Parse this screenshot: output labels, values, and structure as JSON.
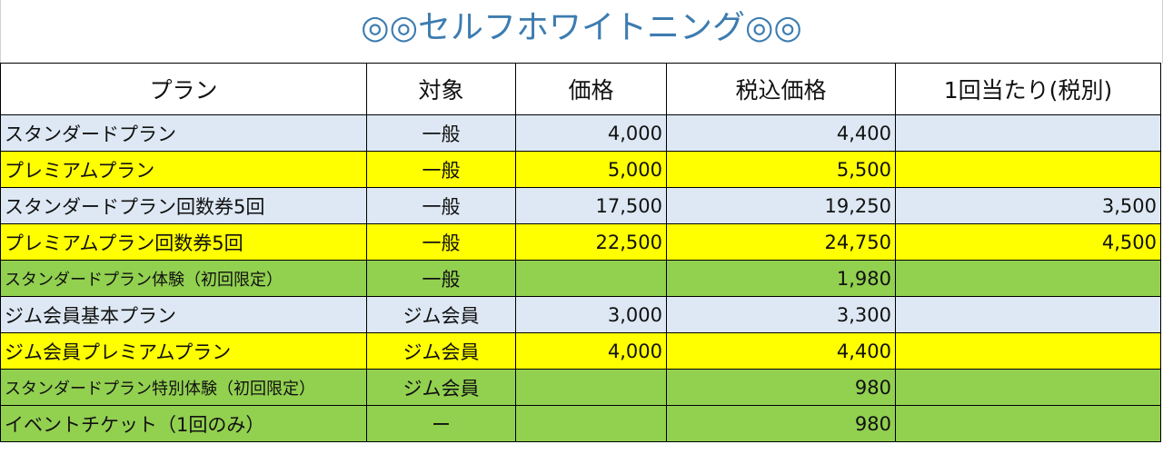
{
  "title": "◎◎セルフホワイトニング◎◎",
  "colors": {
    "title_text": "#3d7cb0",
    "standard_row": "#dde8f4",
    "premium_row": "#ffff00",
    "trial_row": "#92d050",
    "border": "#000000"
  },
  "table": {
    "headers": [
      "プラン",
      "対象",
      "価格",
      "税込価格",
      "1回当たり(税別)"
    ],
    "rows": [
      {
        "tier": "standard",
        "plan": "スタンダードプラン",
        "target": "一般",
        "price": "4,000",
        "tax_price": "4,400",
        "per_visit": ""
      },
      {
        "tier": "premium",
        "plan": "プレミアムプラン",
        "target": "一般",
        "price": "5,000",
        "tax_price": "5,500",
        "per_visit": ""
      },
      {
        "tier": "standard",
        "plan": "スタンダードプラン回数券5回",
        "target": "一般",
        "price": "17,500",
        "tax_price": "19,250",
        "per_visit": "3,500"
      },
      {
        "tier": "premium",
        "plan": "プレミアムプラン回数券5回",
        "target": "一般",
        "price": "22,500",
        "tax_price": "24,750",
        "per_visit": "4,500"
      },
      {
        "tier": "trial",
        "plan": "スタンダードプラン体験（初回限定）",
        "target": "一般",
        "price": "",
        "tax_price": "1,980",
        "per_visit": ""
      },
      {
        "tier": "standard",
        "plan": "ジム会員基本プラン",
        "target": "ジム会員",
        "price": "3,000",
        "tax_price": "3,300",
        "per_visit": ""
      },
      {
        "tier": "premium",
        "plan": "ジム会員プレミアムプラン",
        "target": "ジム会員",
        "price": "4,000",
        "tax_price": "4,400",
        "per_visit": ""
      },
      {
        "tier": "trial",
        "plan": "スタンダードプラン特別体験（初回限定）",
        "target": "ジム会員",
        "price": "",
        "tax_price": "980",
        "per_visit": ""
      },
      {
        "tier": "trial",
        "plan": "イベントチケット（1回のみ）",
        "target": "ー",
        "price": "",
        "tax_price": "980",
        "per_visit": ""
      }
    ]
  }
}
